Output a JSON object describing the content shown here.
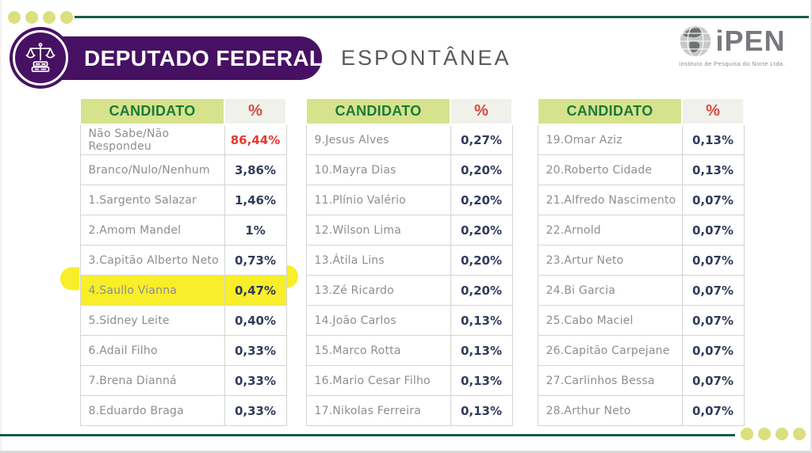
{
  "slide": {
    "title": "DEPUTADO FEDERAL",
    "subtitle": "ESPONTÂNEA",
    "logo": {
      "name": "iPEN",
      "tagline": "Instituto de Pesquisa do Norte Ltda."
    },
    "colors": {
      "purple": "#471163",
      "divider_green": "#175c41",
      "dot_yellow_green": "#dbdf7d",
      "header_cell_bg": "#d7e38c",
      "header_cell_text": "#1b7a3a",
      "pct_header_bg": "#f0f1eb",
      "pct_header_text": "#d6493f",
      "candidate_text": "#8d8e90",
      "value_text": "#2f3b59",
      "value_red": "#e63a30",
      "highlight_yellow": "#f8ee2a"
    }
  },
  "chart_data": [
    {
      "type": "table",
      "columns": [
        "CANDIDATO",
        "%"
      ],
      "rows": [
        {
          "candidate": "Não Sabe/Não Respondeu",
          "pct": "86,44%",
          "red": true
        },
        {
          "candidate": "Branco/Nulo/Nenhum",
          "pct": "3,86%"
        },
        {
          "candidate": "1.Sargento Salazar",
          "pct": "1,46%"
        },
        {
          "candidate": "2.Amom Mandel",
          "pct": "1%"
        },
        {
          "candidate": "3.Capitão Alberto Neto",
          "pct": "0,73%"
        },
        {
          "candidate": "4.Saullo Vianna",
          "pct": "0,47%",
          "highlight": true
        },
        {
          "candidate": "5.Sidney Leite",
          "pct": "0,40%"
        },
        {
          "candidate": "6.Adail Filho",
          "pct": "0,33%"
        },
        {
          "candidate": "7.Brena Dianná",
          "pct": "0,33%"
        },
        {
          "candidate": "8.Eduardo Braga",
          "pct": "0,33%"
        }
      ]
    },
    {
      "type": "table",
      "columns": [
        "CANDIDATO",
        "%"
      ],
      "rows": [
        {
          "candidate": "9.Jesus Alves",
          "pct": "0,27%"
        },
        {
          "candidate": "10.Mayra Dias",
          "pct": "0,20%"
        },
        {
          "candidate": "11.Plínio Valério",
          "pct": "0,20%"
        },
        {
          "candidate": "12.Wilson Lima",
          "pct": "0,20%"
        },
        {
          "candidate": "13.Átila Lins",
          "pct": "0,20%"
        },
        {
          "candidate": "13.Zé Ricardo",
          "pct": "0,20%"
        },
        {
          "candidate": "14.João Carlos",
          "pct": "0,13%"
        },
        {
          "candidate": "15.Marco Rotta",
          "pct": "0,13%"
        },
        {
          "candidate": "16.Mario Cesar Filho",
          "pct": "0,13%"
        },
        {
          "candidate": "17.Nikolas Ferreira",
          "pct": "0,13%"
        }
      ]
    },
    {
      "type": "table",
      "columns": [
        "CANDIDATO",
        "%"
      ],
      "rows": [
        {
          "candidate": "19.Omar Aziz",
          "pct": "0,13%"
        },
        {
          "candidate": "20.Roberto Cidade",
          "pct": "0,13%"
        },
        {
          "candidate": "21.Alfredo Nascimento",
          "pct": "0,07%"
        },
        {
          "candidate": "22.Arnold",
          "pct": "0,07%"
        },
        {
          "candidate": "23.Artur Neto",
          "pct": "0,07%"
        },
        {
          "candidate": "24.Bi Garcia",
          "pct": "0,07%"
        },
        {
          "candidate": "25.Cabo Maciel",
          "pct": "0,07%"
        },
        {
          "candidate": "26.Capitão Carpejane",
          "pct": "0,07%"
        },
        {
          "candidate": "27.Carlinhos Bessa",
          "pct": "0,07%"
        },
        {
          "candidate": "28.Arthur Neto",
          "pct": "0,07%"
        }
      ]
    }
  ]
}
